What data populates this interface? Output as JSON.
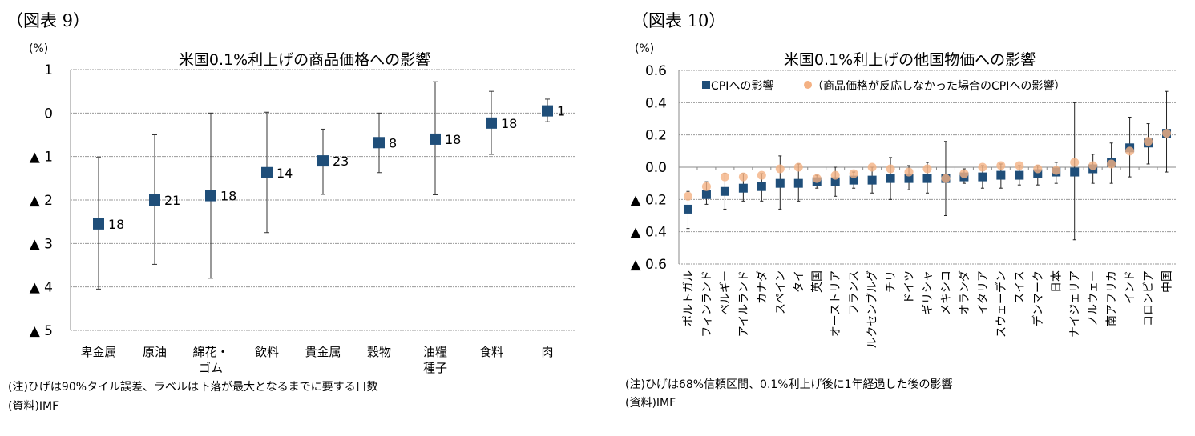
{
  "left": {
    "figure_label": "（図表 9）",
    "unit": "(%)",
    "note": "(注)ひげは90%タイル誤差、ラベルは下落が最大となるまでに要する日数",
    "source": "(資料)IMF"
  },
  "right": {
    "figure_label": "（図表 10）",
    "unit": "(%)",
    "note": "(注)ひげは68%信頼区間、0.1%利上げ後に1年経過した後の影響",
    "source": "(資料)IMF"
  },
  "chart_data": [
    {
      "type": "scatter",
      "title": "米国0.1%利上げの商品価格への影響",
      "ylim": [
        -5,
        1
      ],
      "yticks": [
        1,
        0,
        -1,
        -2,
        -3,
        -4,
        -5
      ],
      "ytick_labels": [
        "1",
        "0",
        "▲ 1",
        "▲ 2",
        "▲ 3",
        "▲ 4",
        "▲ 5"
      ],
      "grid": true,
      "categories": [
        [
          "卑金属"
        ],
        [
          "原油"
        ],
        [
          "綿花・",
          "ゴム"
        ],
        [
          "飲料"
        ],
        [
          "貴金属"
        ],
        [
          "穀物"
        ],
        [
          "油糧",
          "種子"
        ],
        [
          "食料"
        ],
        [
          "肉"
        ]
      ],
      "values": [
        -2.55,
        -2.0,
        -1.9,
        -1.37,
        -1.1,
        -0.68,
        -0.6,
        -0.23,
        0.05
      ],
      "error_low": [
        -4.05,
        -3.48,
        -3.8,
        -2.75,
        -1.87,
        -1.37,
        -1.88,
        -0.95,
        -0.2
      ],
      "error_high": [
        -1.02,
        -0.5,
        0.0,
        0.02,
        -0.37,
        0.0,
        0.72,
        0.5,
        0.32
      ],
      "data_labels": [
        "18",
        "21",
        "18",
        "14",
        "23",
        "8",
        "18",
        "18",
        "1"
      ],
      "colors": {
        "marker": "#1f4e79"
      }
    },
    {
      "type": "scatter",
      "title": "米国0.1%利上げの他国物価への影響",
      "ylim": [
        -0.6,
        0.6
      ],
      "yticks": [
        0.6,
        0.4,
        0.2,
        0.0,
        -0.2,
        -0.4,
        -0.6
      ],
      "ytick_labels": [
        "0.6",
        "0.4",
        "0.2",
        "0.0",
        "▲ 0.2",
        "▲ 0.4",
        "▲ 0.6"
      ],
      "grid": true,
      "legend": "top-left",
      "categories": [
        "ポルトガル",
        "フィンランド",
        "ベルギー",
        "アイルランド",
        "カナダ",
        "スペイン",
        "タイ",
        "英国",
        "オーストリア",
        "フランス",
        "ルクセンブルグ",
        "チリ",
        "ドイツ",
        "ギリシャ",
        "メキシコ",
        "オランダ",
        "イタリア",
        "スウェーデン",
        "スイス",
        "デンマーク",
        "日本",
        "ナイジェリア",
        "ノルウェー",
        "南アフリカ",
        "インド",
        "コロンビア",
        "中国"
      ],
      "series": [
        {
          "name": "CPIへの影響",
          "color": "#1f4e79",
          "values": [
            -0.26,
            -0.17,
            -0.15,
            -0.13,
            -0.12,
            -0.1,
            -0.1,
            -0.09,
            -0.09,
            -0.08,
            -0.08,
            -0.07,
            -0.07,
            -0.07,
            -0.07,
            -0.06,
            -0.06,
            -0.05,
            -0.05,
            -0.04,
            -0.03,
            -0.03,
            -0.01,
            0.03,
            0.12,
            0.15,
            0.21
          ],
          "error_low": [
            -0.38,
            -0.23,
            -0.26,
            -0.21,
            -0.21,
            -0.26,
            -0.21,
            -0.13,
            -0.18,
            -0.13,
            -0.16,
            -0.2,
            -0.14,
            -0.16,
            -0.3,
            -0.1,
            -0.13,
            -0.13,
            -0.11,
            -0.11,
            -0.1,
            -0.45,
            -0.1,
            -0.1,
            -0.06,
            0.02,
            -0.03
          ],
          "error_high": [
            -0.15,
            -0.09,
            -0.04,
            -0.04,
            -0.04,
            0.07,
            0.02,
            -0.05,
            0.0,
            -0.03,
            0.0,
            0.06,
            0.01,
            0.03,
            0.16,
            -0.01,
            0.01,
            0.02,
            0.01,
            0.01,
            0.03,
            0.4,
            0.08,
            0.15,
            0.31,
            0.27,
            0.47
          ]
        },
        {
          "name": "（商品価格が反応しなかった場合のCPIへの影響）",
          "color": "#f4b183",
          "values": [
            -0.18,
            -0.12,
            -0.06,
            -0.06,
            -0.05,
            -0.01,
            0.0,
            -0.07,
            -0.05,
            -0.04,
            0.0,
            -0.01,
            -0.03,
            -0.01,
            -0.07,
            -0.04,
            0.0,
            0.01,
            0.01,
            -0.01,
            -0.02,
            0.03,
            0.01,
            0.02,
            0.1,
            0.16,
            0.21
          ]
        }
      ]
    }
  ]
}
